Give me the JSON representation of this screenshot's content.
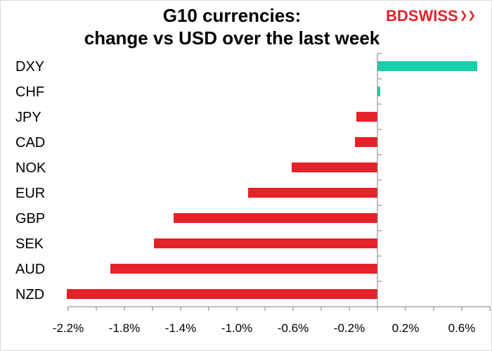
{
  "brand": {
    "name_part1": "BD",
    "name_part2": "SWISS",
    "mark": "❯❯",
    "color": "#e52229"
  },
  "colors": {
    "positive": "#19cfaa",
    "negative": "#e52229",
    "axis": "#7f7f7f"
  },
  "chart_data": {
    "type": "bar",
    "orientation": "horizontal",
    "title": [
      "G10 currencies:",
      "change vs USD over the last week"
    ],
    "xlabel": "",
    "ylabel": "",
    "categories": [
      "DXY",
      "CHF",
      "JPY",
      "CAD",
      "NOK",
      "EUR",
      "GBP",
      "SEK",
      "AUD",
      "NZD"
    ],
    "values": [
      0.71,
      0.02,
      -0.15,
      -0.16,
      -0.61,
      -0.92,
      -1.45,
      -1.59,
      -1.9,
      -2.21
    ],
    "xlim": [
      -2.2,
      0.8
    ],
    "xticks": [
      -2.2,
      -1.8,
      -1.4,
      -1.0,
      -0.6,
      -0.2,
      0.2,
      0.6
    ],
    "xtick_labels": [
      "-2.2%",
      "-1.8%",
      "-1.4%",
      "-1.0%",
      "-0.6%",
      "-0.2%",
      "0.2%",
      "0.6%"
    ],
    "grid": false,
    "legend": "none"
  }
}
